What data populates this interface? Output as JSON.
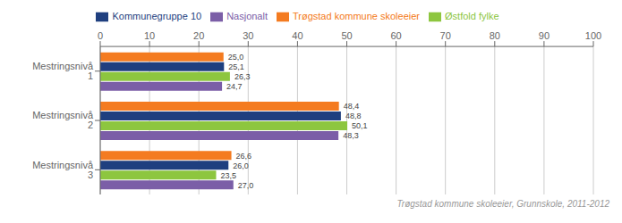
{
  "chart_data": {
    "type": "bar",
    "orientation": "horizontal",
    "categories": [
      "Mestringsnivå 1",
      "Mestringsnivå 2",
      "Mestringsnivå 3"
    ],
    "series": [
      {
        "name": "Trøgstad kommune skoleeier",
        "color": "#f47b20",
        "values": [
          25.0,
          48.4,
          26.6
        ],
        "value_labels": [
          "25,0",
          "48,4",
          "26,6"
        ]
      },
      {
        "name": "Kommunegruppe 10",
        "color": "#1f3f7f",
        "values": [
          25.1,
          48.8,
          26.0
        ],
        "value_labels": [
          "25,1",
          "48,8",
          "26,0"
        ]
      },
      {
        "name": "Østfold fylke",
        "color": "#8dc63f",
        "values": [
          26.3,
          50.1,
          23.5
        ],
        "value_labels": [
          "26,3",
          "50,1",
          "23,5"
        ]
      },
      {
        "name": "Nasjonalt",
        "color": "#7b5ea7",
        "values": [
          24.7,
          48.3,
          27.0
        ],
        "value_labels": [
          "24,7",
          "48,3",
          "27,0"
        ]
      }
    ],
    "xlim": [
      0,
      100
    ],
    "xticks": [
      0,
      10,
      20,
      30,
      40,
      50,
      60,
      70,
      80,
      90,
      100
    ],
    "grid": true,
    "legend": "top",
    "data_labels": true,
    "annotations": [
      "Trøgstad kommune skoleeier, Grunnskole, 2011-2012"
    ]
  }
}
